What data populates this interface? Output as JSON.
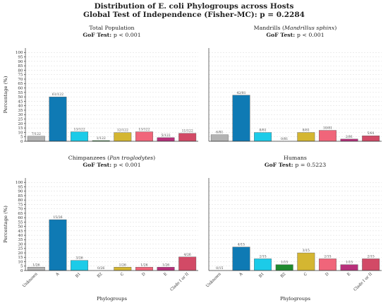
{
  "title_line1": "Distribution of E. coli Phylogroups across Hosts",
  "title_line2": "Global Test of Independence (Fisher-MC): p = 0.2284",
  "colors": {
    "Unknown": "#b3b3b3",
    "A": "#0f7ab4",
    "B1": "#1ccbe8",
    "B2": "#1f8a2e",
    "C": "#d4b631",
    "D": "#f0657a",
    "E": "#b7307b",
    "Clade I or II": "#d24a66"
  },
  "chart_data": [
    {
      "type": "bar",
      "title": "Total Population",
      "title_italic": "",
      "gof_label": "GoF Test:",
      "gof_value": "p < 0.001",
      "categories": [
        "Unknown",
        "A",
        "B1",
        "B2",
        "C",
        "D",
        "E",
        "Clade I or II"
      ],
      "values": [
        5.7,
        50.0,
        10.7,
        0.8,
        9.8,
        10.7,
        4.1,
        9.0
      ],
      "data_labels": [
        "7/122",
        "61/122",
        "13/122",
        "1/122",
        "12/122",
        "13/122",
        "5/122",
        "11/122"
      ],
      "ylabel": "Percentage (%)",
      "xlabel": "",
      "ylim": [
        0,
        100
      ],
      "yticks": [
        0,
        5,
        10,
        15,
        20,
        25,
        30,
        35,
        40,
        45,
        50,
        55,
        60,
        65,
        70,
        75,
        80,
        85,
        90,
        95,
        100
      ]
    },
    {
      "type": "bar",
      "title": "Mandrills (",
      "title_italic": "Mandrillus sphinx",
      "title_suffix": ")",
      "gof_label": "GoF Test:",
      "gof_value": "p < 0.001",
      "categories": [
        "Unknown",
        "A",
        "B1",
        "B2",
        "C",
        "D",
        "E",
        "Clade I or II"
      ],
      "values": [
        7.4,
        51.9,
        9.9,
        0.0,
        9.9,
        12.3,
        2.5,
        6.2
      ],
      "data_labels": [
        "6/81",
        "42/81",
        "8/81",
        "0/81",
        "8/81",
        "10/81",
        "2/81",
        "5/81"
      ],
      "ylabel": "",
      "xlabel": "",
      "ylim": [
        0,
        100
      ],
      "yticks": []
    },
    {
      "type": "bar",
      "title": "Chimpanzees (",
      "title_italic": "Pan troglodytes",
      "title_suffix": ")",
      "gof_label": "GoF Test:",
      "gof_value": "p < 0.001",
      "categories": [
        "Unknown",
        "A",
        "B1",
        "B2",
        "C",
        "D",
        "E",
        "Clade I or II"
      ],
      "values": [
        3.8,
        57.7,
        11.5,
        0.0,
        3.8,
        3.8,
        3.8,
        15.4
      ],
      "data_labels": [
        "1/26",
        "15/26",
        "3/26",
        "0/26",
        "1/26",
        "1/26",
        "1/26",
        "4/26"
      ],
      "ylabel": "Percentage (%)",
      "xlabel": "Phylogroups",
      "ylim": [
        0,
        100
      ],
      "yticks": [
        0,
        5,
        10,
        15,
        20,
        25,
        30,
        35,
        40,
        45,
        50,
        55,
        60,
        65,
        70,
        75,
        80,
        85,
        90,
        95,
        100
      ]
    },
    {
      "type": "bar",
      "title": "Humans",
      "title_italic": "",
      "gof_label": "GoF Test:",
      "gof_value": "p = 0.5223",
      "categories": [
        "Unknown",
        "A",
        "B1",
        "B2",
        "C",
        "D",
        "E",
        "Clade I or II"
      ],
      "values": [
        0.0,
        26.7,
        13.3,
        6.7,
        20.0,
        13.3,
        6.7,
        13.3
      ],
      "data_labels": [
        "0/15",
        "4/15",
        "2/15",
        "1/15",
        "3/15",
        "2/15",
        "1/15",
        "2/15"
      ],
      "ylabel": "",
      "xlabel": "Phylogroups",
      "ylim": [
        0,
        100
      ],
      "yticks": []
    }
  ]
}
